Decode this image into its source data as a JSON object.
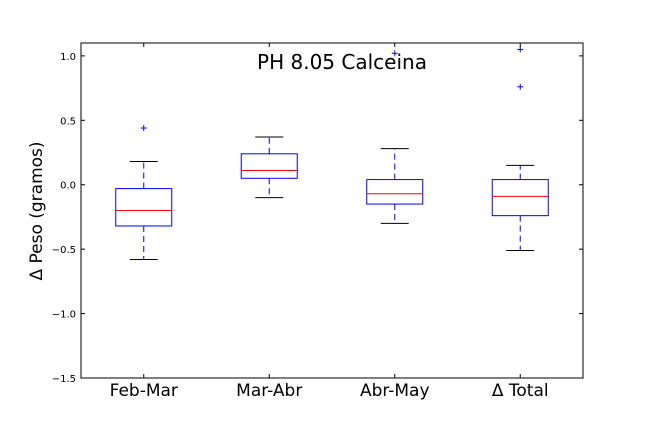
{
  "chart_data": {
    "type": "box",
    "title": "PH 8.05 Calceina",
    "xlabel": "",
    "ylabel": "Δ Peso (gramos)",
    "ylim": [
      -1.5,
      1.1
    ],
    "yticks": [
      -1.5,
      -1.0,
      -0.5,
      0.0,
      0.5,
      1.0
    ],
    "ytick_labels": [
      "−1.5",
      "−1.0",
      "−0.5",
      "0.0",
      "0.5",
      "1.0"
    ],
    "grid": false,
    "colors": {
      "box": "#0000ff",
      "median": "#ff0000",
      "whisker": "#000000",
      "flier": "#0000ff"
    },
    "categories": [
      "Feb-Mar",
      "Mar-Abr",
      "Abr-May",
      "Δ Total"
    ],
    "boxes": [
      {
        "whislo": -0.58,
        "q1": -0.32,
        "med": -0.2,
        "q3": -0.03,
        "whishi": 0.18,
        "fliers": [
          0.44
        ]
      },
      {
        "whislo": -0.1,
        "q1": 0.05,
        "med": 0.11,
        "q3": 0.24,
        "whishi": 0.37,
        "fliers": []
      },
      {
        "whislo": -0.3,
        "q1": -0.15,
        "med": -0.07,
        "q3": 0.04,
        "whishi": 0.28,
        "fliers": [
          1.02
        ]
      },
      {
        "whislo": -0.51,
        "q1": -0.24,
        "med": -0.09,
        "q3": 0.04,
        "whishi": 0.15,
        "fliers": [
          0.76,
          1.05
        ]
      }
    ]
  }
}
